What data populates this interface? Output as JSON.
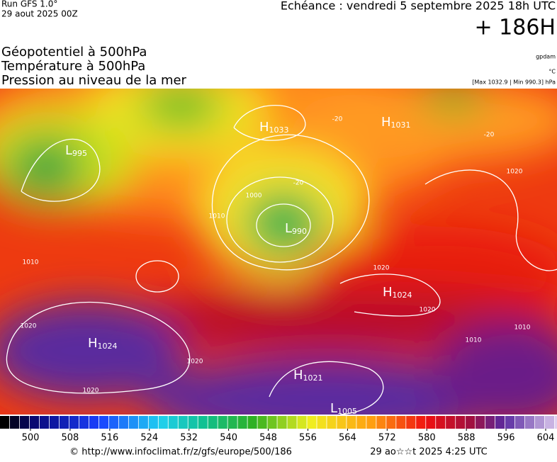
{
  "header": {
    "run": "Run GFS 1.0°",
    "date": "29 aout 2025 00Z",
    "valid": "Echéance : vendredi 5 septembre 2025 18h UTC",
    "lead": "+ 186H"
  },
  "layers": [
    "Géopotentiel à 500hPa",
    "Température à 500hPa",
    "Pression au niveau de la mer"
  ],
  "units": [
    "gpdam",
    "°C",
    "[Max 1032.9 | Min 990.3] hPa"
  ],
  "centers": [
    {
      "kind": "H",
      "value": "1033"
    },
    {
      "kind": "H",
      "value": "1031"
    },
    {
      "kind": "L",
      "value": "995"
    },
    {
      "kind": "L",
      "value": "990"
    },
    {
      "kind": "H",
      "value": "1024"
    },
    {
      "kind": "H",
      "value": "1024"
    },
    {
      "kind": "H",
      "value": "1021"
    },
    {
      "kind": "L",
      "value": "1005"
    }
  ],
  "contour_labels": [
    "1020",
    "1020",
    "1020",
    "1020",
    "1020",
    "1020",
    "1010",
    "1010",
    "1010",
    "1000",
    "1010",
    "-20",
    "-20",
    "-20"
  ],
  "colorbar": {
    "ticks": [
      500,
      508,
      516,
      524,
      532,
      540,
      548,
      556,
      564,
      572,
      580,
      588,
      596,
      604
    ]
  },
  "footer": {
    "url": "© http://www.infoclimat.fr/z/gfs/europe/500/186",
    "time": "29 ao☆☆t 2025  4:25 UTC"
  }
}
